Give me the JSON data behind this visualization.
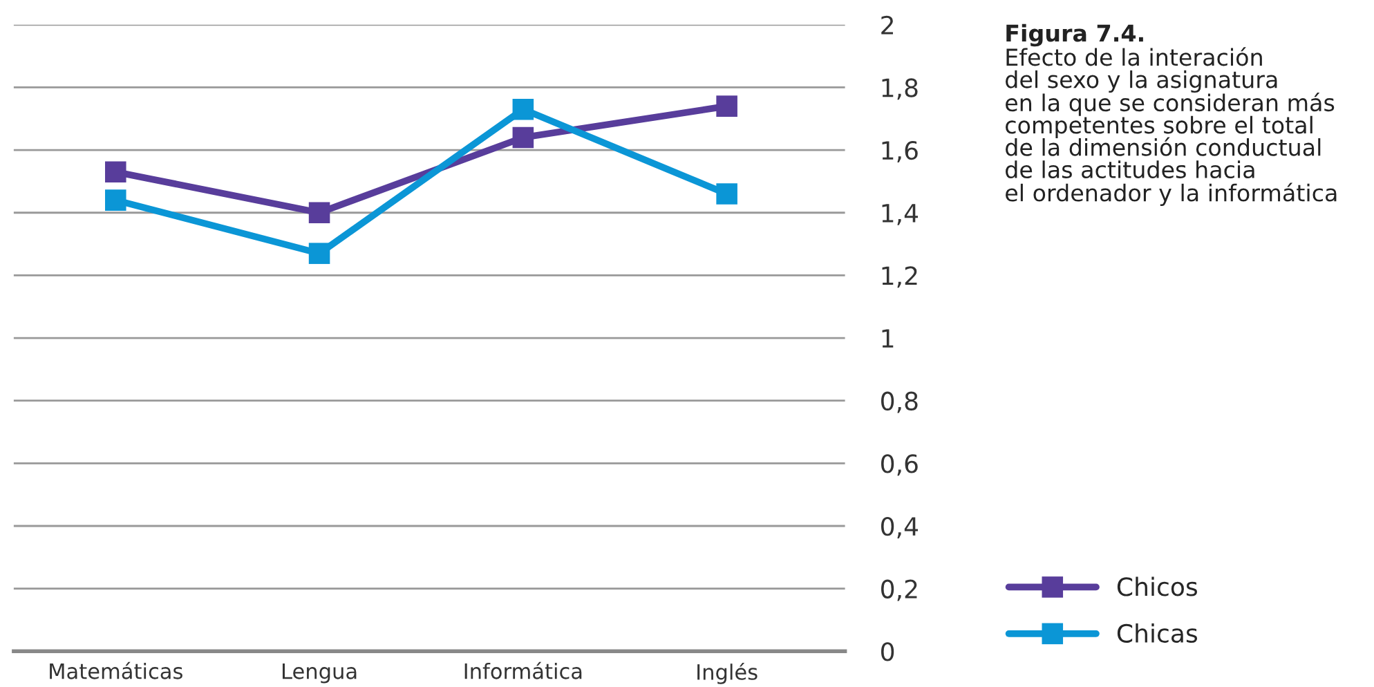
{
  "chart_data": {
    "type": "line",
    "title": "Figura 7.4.",
    "subtitle": "Efecto de la interación\ndel sexo y la asignatura\nen la que se consideran más\ncompetentes sobre el total\nde la dimensión conductual\nde las actitudes hacia\nel ordenador y la informática",
    "categories": [
      "Matemáticas",
      "Lengua",
      "Informática",
      "Inglés"
    ],
    "series": [
      {
        "name": "Chicos",
        "color": "#583d9b",
        "values": [
          1.53,
          1.4,
          1.64,
          1.74
        ]
      },
      {
        "name": "Chicas",
        "color": "#0b96d6",
        "values": [
          1.44,
          1.27,
          1.73,
          1.46
        ]
      }
    ],
    "ylim": [
      0,
      2
    ],
    "yticks": [
      {
        "value": 0,
        "label": "0"
      },
      {
        "value": 0.2,
        "label": "0,2"
      },
      {
        "value": 0.4,
        "label": "0,4"
      },
      {
        "value": 0.6,
        "label": "0,6"
      },
      {
        "value": 0.8,
        "label": "0,8"
      },
      {
        "value": 1,
        "label": "1"
      },
      {
        "value": 1.2,
        "label": "1,2"
      },
      {
        "value": 1.4,
        "label": "1,4"
      },
      {
        "value": 1.6,
        "label": "1,6"
      },
      {
        "value": 1.8,
        "label": "1,8"
      },
      {
        "value": 2,
        "label": "2"
      }
    ],
    "grid": "y",
    "legend": "bottom right",
    "marker": "square",
    "line_style": "solid"
  }
}
